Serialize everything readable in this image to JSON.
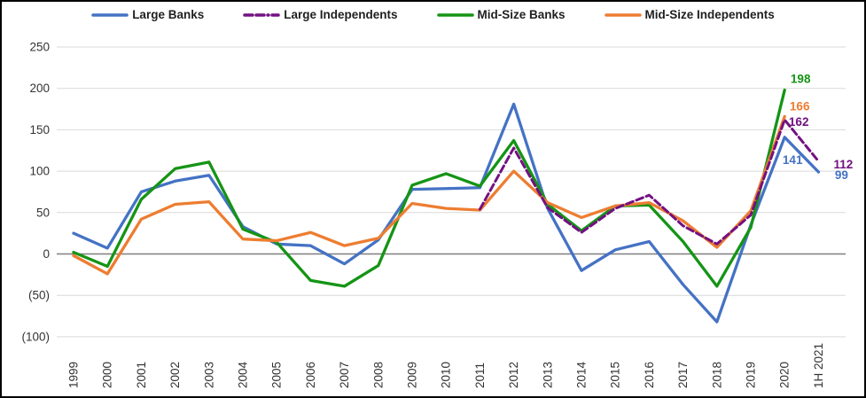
{
  "chart_data": {
    "type": "line",
    "title": "",
    "xlabel": "",
    "ylabel": "",
    "categories": [
      "1999",
      "2000",
      "2001",
      "2002",
      "2003",
      "2004",
      "2005",
      "2006",
      "2007",
      "2008",
      "2009",
      "2010",
      "2011",
      "2012",
      "2013",
      "2014",
      "2015",
      "2016",
      "2017",
      "2018",
      "2019",
      "2020",
      "1H 2021"
    ],
    "y_ticks": [
      250,
      200,
      150,
      100,
      50,
      0,
      -50,
      -100
    ],
    "y_tick_labels": [
      "250",
      "200",
      "150",
      "100",
      "50",
      "0",
      "(50)",
      "(100)"
    ],
    "ylim": [
      -100,
      250
    ],
    "grid": true,
    "negative_format": "parentheses",
    "legend_position": "top",
    "zero_line_color": "#7F7F7F",
    "gridline_color": "#D9D9D9",
    "series": [
      {
        "name": "Large Banks",
        "color": "#4472C4",
        "style": "solid",
        "start_index": 0,
        "values": [
          25,
          7,
          75,
          88,
          95,
          33,
          12,
          10,
          -12,
          17,
          78,
          79,
          80,
          181,
          55,
          -20,
          5,
          15,
          -37,
          -82,
          35,
          141,
          99
        ]
      },
      {
        "name": "Large Independents",
        "color": "#731082",
        "style": "dashed",
        "start_index": 12,
        "values": [
          54,
          128,
          56,
          26,
          55,
          71,
          34,
          12,
          47,
          162,
          112
        ]
      },
      {
        "name": "Mid-Size Banks",
        "color": "#159415",
        "style": "solid",
        "start_index": 0,
        "values": [
          2,
          -15,
          66,
          103,
          111,
          30,
          14,
          -32,
          -39,
          -14,
          83,
          97,
          82,
          137,
          60,
          28,
          58,
          59,
          15,
          -39,
          32,
          198
        ]
      },
      {
        "name": "Mid-Size Independents",
        "color": "#ED7D31",
        "style": "solid",
        "start_index": 0,
        "values": [
          -2,
          -24,
          42,
          60,
          63,
          18,
          16,
          26,
          10,
          19,
          61,
          55,
          53,
          100,
          62,
          44,
          58,
          62,
          40,
          8,
          52,
          166
        ]
      }
    ],
    "annotations": [
      {
        "series": "Mid-Size Banks",
        "category": "2020",
        "text": "198"
      },
      {
        "series": "Mid-Size Independents",
        "category": "2020",
        "text": "166"
      },
      {
        "series": "Large Independents",
        "category": "2020",
        "text": "162"
      },
      {
        "series": "Large Banks",
        "category": "2020",
        "text": "141"
      },
      {
        "series": "Large Independents",
        "category": "1H 2021",
        "text": "112"
      },
      {
        "series": "Large Banks",
        "category": "1H 2021",
        "text": "99"
      }
    ]
  }
}
